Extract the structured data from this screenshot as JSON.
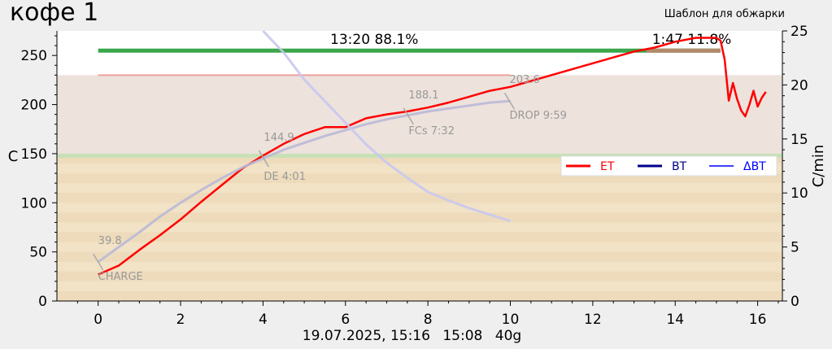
{
  "header": {
    "title": "кофе 1",
    "template_label": "Шаблон для обжарки"
  },
  "footer": {
    "datetime": "19.07.2025, 15:16",
    "time": "15:08",
    "weight": "40g"
  },
  "top_labels": {
    "left": "13:20  88.1%",
    "right": "1:47  11.8%"
  },
  "legend": [
    {
      "label": "ET",
      "color": "#ff0000"
    },
    {
      "label": "BT",
      "color": "#00008b"
    },
    {
      "label": "ΔBT",
      "color": "#0000ff"
    }
  ],
  "events": [
    {
      "value": "39.8",
      "name": "CHARGE",
      "t": 0,
      "temp": 39.8
    },
    {
      "value": "144.9",
      "name": "DE 4:01",
      "t": 4.02,
      "temp": 144.9
    },
    {
      "value": "188.1",
      "name": "FCs 7:32",
      "t": 7.53,
      "temp": 188.1
    },
    {
      "value": "203.6",
      "name": "DROP 9:59",
      "t": 9.98,
      "temp": 203.6
    }
  ],
  "chart_data": {
    "type": "line",
    "title": "кофе 1",
    "xlabel": "",
    "ylabel": "C",
    "y2label": "C/min",
    "xlim": [
      -1,
      16.6
    ],
    "ylim": [
      0,
      275
    ],
    "y2lim": [
      0,
      25
    ],
    "xticks": [
      0,
      2,
      4,
      6,
      8,
      10,
      12,
      14,
      16
    ],
    "yticks": [
      0,
      50,
      100,
      150,
      200,
      250
    ],
    "y2ticks": [
      0,
      5,
      10,
      15,
      20,
      25
    ],
    "series": [
      {
        "name": "ET",
        "color": "#ff0000",
        "x": [
          0,
          0.5,
          1,
          1.5,
          2,
          2.5,
          3,
          3.5,
          4,
          4.5,
          5,
          5.5,
          6,
          6.5,
          7,
          7.5,
          8,
          8.5,
          9,
          9.5,
          10,
          10.5,
          11,
          11.5,
          12,
          12.5,
          13,
          13.5,
          14,
          14.5,
          15,
          15.1,
          15.2,
          15.3,
          15.4,
          15.5,
          15.6,
          15.7,
          15.8,
          15.9,
          16,
          16.1,
          16.2
        ],
        "y": [
          27,
          36,
          52,
          67,
          83,
          101,
          118,
          135,
          148,
          160,
          170,
          177,
          177,
          186,
          190,
          193,
          197,
          202,
          208,
          214,
          218,
          224,
          230,
          236,
          242,
          248,
          254,
          258,
          264,
          268,
          268,
          265,
          246,
          204,
          222,
          206,
          194,
          188,
          200,
          214,
          198,
          207,
          213
        ]
      },
      {
        "name": "BT",
        "color": "#b9b9d6",
        "x": [
          0,
          0.5,
          1,
          1.5,
          2,
          2.5,
          3,
          3.5,
          4,
          4.5,
          5,
          5.5,
          6,
          6.5,
          7,
          7.5,
          8,
          8.5,
          9,
          9.5,
          10
        ],
        "y": [
          39.8,
          55,
          70,
          86,
          100,
          113,
          125,
          136,
          145,
          154,
          161,
          168,
          174,
          180,
          185,
          189,
          193,
          196,
          199,
          202,
          203.6
        ]
      },
      {
        "name": "ΔBT",
        "color": "#c8c8ee",
        "x": [
          4,
          4.5,
          5,
          5.5,
          6,
          6.5,
          7,
          7.5,
          8,
          8.5,
          9,
          9.5,
          10
        ],
        "y2": [
          25,
          23,
          20.5,
          18.5,
          16.5,
          14.5,
          12.8,
          11.4,
          10.1,
          9.3,
          8.6,
          8,
          7.4
        ]
      }
    ],
    "grid": false,
    "legend_position": "right-middle"
  }
}
